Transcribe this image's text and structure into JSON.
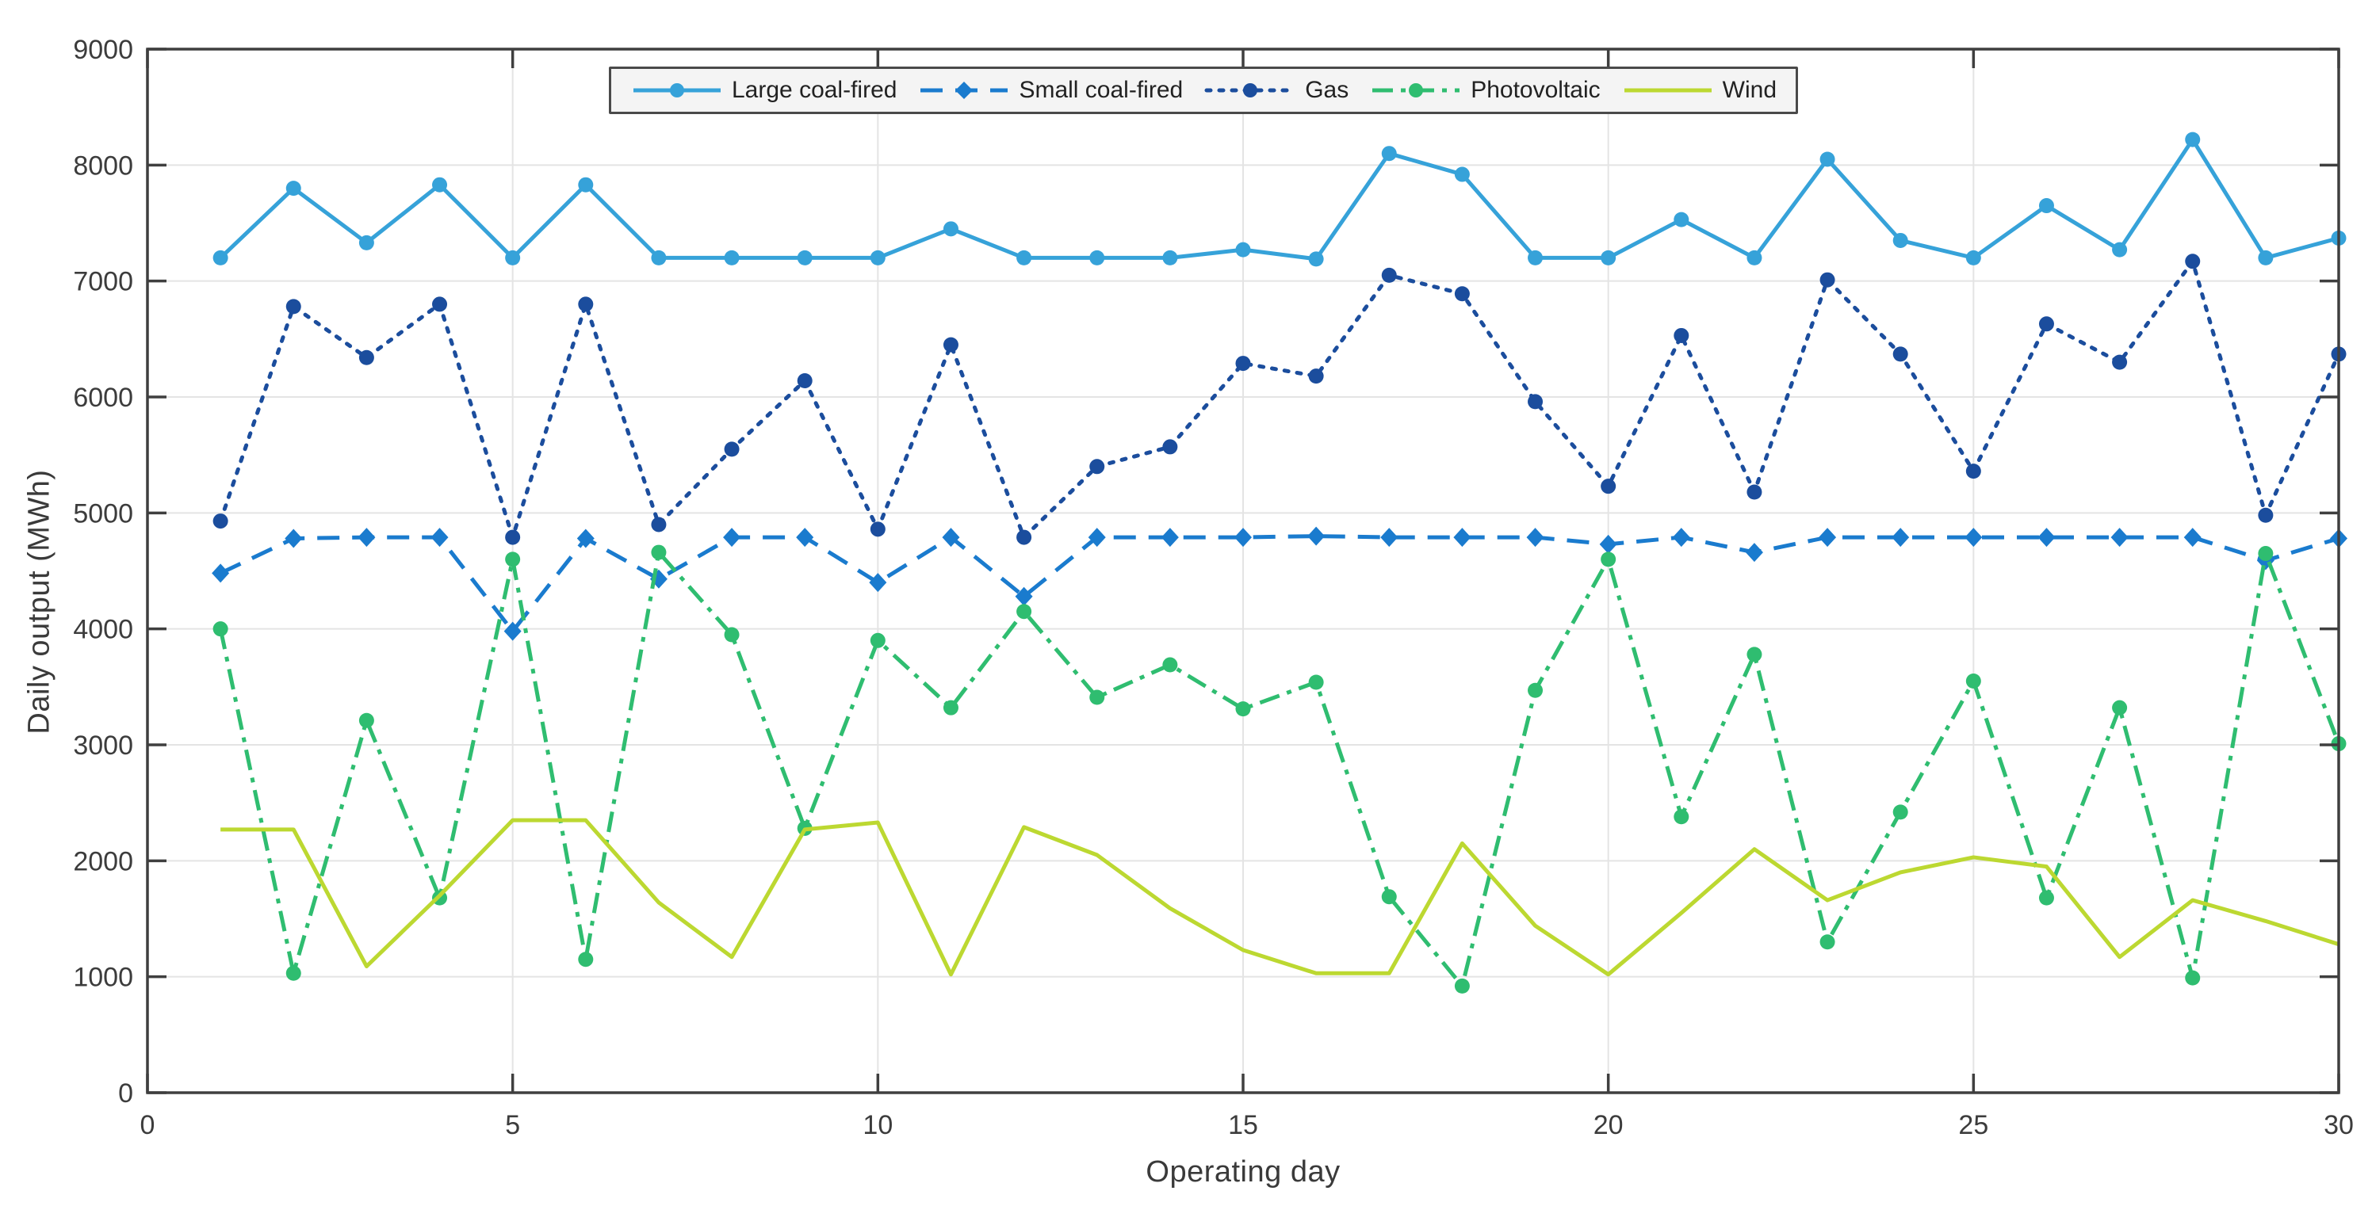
{
  "figure": {
    "xlabel": "Operating day",
    "ylabel": "Daily output (MWh)"
  },
  "chart_data": {
    "type": "line",
    "title": "",
    "xlabel": "Operating day",
    "ylabel": "Daily output (MWh)",
    "xlim": [
      0,
      30
    ],
    "ylim": [
      0,
      9000
    ],
    "xticks": [
      0,
      5,
      10,
      15,
      20,
      25,
      30
    ],
    "yticks": [
      0,
      1000,
      2000,
      3000,
      4000,
      5000,
      6000,
      7000,
      8000,
      9000
    ],
    "grid": true,
    "legend_position": "top-center-inside",
    "axis_color": "#3f3f3f",
    "grid_color": "#e4e4e4",
    "tick_label_color": "#3c3c3c",
    "legend_bg": "#f4f4f4",
    "legend_border_color": "#4a4a4a",
    "x": [
      1,
      2,
      3,
      4,
      5,
      6,
      7,
      8,
      9,
      10,
      11,
      12,
      13,
      14,
      15,
      16,
      17,
      18,
      19,
      20,
      21,
      22,
      23,
      24,
      25,
      26,
      27,
      28,
      29,
      30
    ],
    "series": [
      {
        "name": "Large coal-fired",
        "color": "#36a2d9",
        "line_style": "solid",
        "marker": "circle",
        "values": [
          7200,
          7800,
          7330,
          7830,
          7200,
          7830,
          7200,
          7200,
          7200,
          7200,
          7450,
          7200,
          7200,
          7200,
          7270,
          7190,
          8100,
          7920,
          7200,
          7200,
          7530,
          7200,
          8050,
          7350,
          7200,
          7650,
          7270,
          8220,
          7200,
          7370
        ]
      },
      {
        "name": "Small coal-fired",
        "color": "#1a7bce",
        "line_style": "dashed",
        "marker": "diamond",
        "values": [
          4480,
          4780,
          4790,
          4790,
          3980,
          4780,
          4430,
          4790,
          4790,
          4400,
          4790,
          4280,
          4790,
          4790,
          4790,
          4800,
          4790,
          4790,
          4790,
          4730,
          4790,
          4660,
          4790,
          4790,
          4790,
          4790,
          4790,
          4790,
          4590,
          4780
        ]
      },
      {
        "name": "Gas",
        "color": "#1b4d9d",
        "line_style": "dotted",
        "marker": "circle",
        "values": [
          4930,
          6780,
          6340,
          6800,
          4790,
          6800,
          4900,
          5550,
          6140,
          4860,
          6450,
          4790,
          5400,
          5570,
          6290,
          6180,
          7050,
          6890,
          5960,
          5230,
          6530,
          5180,
          7010,
          6370,
          5360,
          6630,
          6300,
          7170,
          4980,
          6370
        ]
      },
      {
        "name": "Photovoltaic",
        "color": "#2fbd70",
        "line_style": "dashdot",
        "marker": "circle",
        "values": [
          4000,
          1030,
          3210,
          1680,
          4600,
          1150,
          4660,
          3950,
          2280,
          3900,
          3320,
          4150,
          3410,
          3690,
          3310,
          3540,
          1690,
          920,
          3470,
          4600,
          2380,
          3780,
          1300,
          2420,
          3550,
          1680,
          3320,
          990,
          4650,
          3010
        ]
      },
      {
        "name": "Wind",
        "color": "#bcd831",
        "line_style": "solid",
        "marker": "none",
        "values": [
          2270,
          2270,
          1090,
          1700,
          2350,
          2350,
          1640,
          1170,
          2270,
          2330,
          1020,
          2290,
          2050,
          1590,
          1230,
          1030,
          1030,
          2150,
          1440,
          1020,
          1550,
          2100,
          1660,
          1900,
          2030,
          1950,
          1170,
          1660,
          1480,
          1280
        ]
      }
    ]
  }
}
